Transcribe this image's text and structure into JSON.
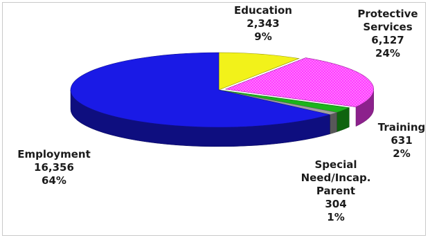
{
  "chart_data": {
    "type": "pie",
    "style": "3d-exploded",
    "title": "",
    "slices": [
      {
        "label": "Education",
        "value": "2,343",
        "percent": "9%",
        "number": 2343,
        "color": "#f2f21a"
      },
      {
        "label": "Protective Services",
        "label_lines": [
          "Protective",
          "Services"
        ],
        "value": "6,127",
        "percent": "24%",
        "number": 6127,
        "color": "#ff3cff",
        "pattern": "dotted"
      },
      {
        "label": "Training",
        "value": "631",
        "percent": "2%",
        "number": 631,
        "color": "#1bb41b"
      },
      {
        "label": "Special Need/Incap. Parent",
        "label_lines": [
          "Special",
          "Need/Incap.",
          "Parent"
        ],
        "value": "304",
        "percent": "1%",
        "number": 304,
        "color": "#a0a0a0"
      },
      {
        "label": "Employment",
        "value": "16,356",
        "percent": "64%",
        "number": 16356,
        "color": "#1a1ae6"
      }
    ]
  }
}
